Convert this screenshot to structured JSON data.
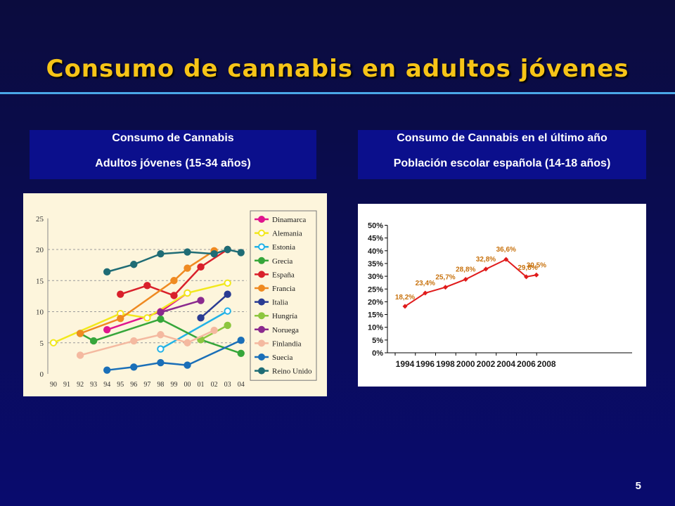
{
  "title": "Consumo de cannabis en adultos jóvenes",
  "page_number": "5",
  "left_panel": {
    "heading_line1": "Consumo de Cannabis",
    "heading_line2": "Adultos jóvenes (15-34 años)"
  },
  "right_panel": {
    "heading_line1": "Consumo de Cannabis en el último año",
    "heading_line2": "Población escolar española (14-18 años)"
  },
  "chart_data": [
    {
      "type": "line",
      "title": "",
      "xlabel": "",
      "ylabel": "",
      "categories": [
        "90",
        "91",
        "92",
        "93",
        "94",
        "95",
        "96",
        "97",
        "98",
        "99",
        "00",
        "01",
        "02",
        "03",
        "04"
      ],
      "ylim": [
        0,
        25
      ],
      "yticks": [
        "0",
        "5",
        "10",
        "15",
        "20",
        "25"
      ],
      "grid": "horizontal dashed",
      "legend": "right",
      "series": [
        {
          "name": "Dinamarca",
          "color": "#e0158e",
          "points": [
            [
              "94",
              7.1
            ],
            [
              "98",
              10.0
            ],
            [
              "00",
              13.0
            ]
          ]
        },
        {
          "name": "Alemania",
          "color": "#f2e81c",
          "marker_fill": "#ffffff",
          "points": [
            [
              "90",
              5.0
            ],
            [
              "95",
              9.7
            ],
            [
              "97",
              9.0
            ],
            [
              "00",
              13.0
            ],
            [
              "03",
              14.6
            ]
          ]
        },
        {
          "name": "Estonia",
          "color": "#22b2e6",
          "marker_fill": "#ffffff",
          "points": [
            [
              "98",
              4.0
            ],
            [
              "03",
              10.1
            ]
          ]
        },
        {
          "name": "Grecia",
          "color": "#36a63a",
          "points": [
            [
              "92",
              6.5
            ],
            [
              "93",
              5.3
            ],
            [
              "98",
              8.8
            ],
            [
              "01",
              5.5
            ],
            [
              "04",
              3.3
            ]
          ]
        },
        {
          "name": "España",
          "color": "#d9202b",
          "points": [
            [
              "95",
              12.8
            ],
            [
              "97",
              14.2
            ],
            [
              "99",
              12.6
            ],
            [
              "01",
              17.2
            ],
            [
              "03",
              20.0
            ]
          ]
        },
        {
          "name": "Francia",
          "color": "#ef8a21",
          "points": [
            [
              "92",
              6.5
            ],
            [
              "95",
              8.9
            ],
            [
              "99",
              15.0
            ],
            [
              "00",
              17.0
            ],
            [
              "02",
              19.8
            ]
          ]
        },
        {
          "name": "Italia",
          "color": "#2a3c93",
          "points": [
            [
              "01",
              9.0
            ],
            [
              "03",
              12.8
            ]
          ]
        },
        {
          "name": "Hungría",
          "color": "#8dc63f",
          "points": [
            [
              "01",
              5.5
            ],
            [
              "03",
              7.8
            ]
          ]
        },
        {
          "name": "Noruega",
          "color": "#8b2a8e",
          "points": [
            [
              "98",
              9.9
            ],
            [
              "01",
              11.8
            ]
          ]
        },
        {
          "name": "Finlandia",
          "color": "#f4b9a0",
          "points": [
            [
              "92",
              3.0
            ],
            [
              "96",
              5.3
            ],
            [
              "98",
              6.3
            ],
            [
              "00",
              5.0
            ],
            [
              "02",
              7.0
            ]
          ]
        },
        {
          "name": "Suecia",
          "color": "#1a6fb8",
          "points": [
            [
              "94",
              0.6
            ],
            [
              "96",
              1.1
            ],
            [
              "98",
              1.8
            ],
            [
              "00",
              1.4
            ],
            [
              "04",
              5.4
            ]
          ]
        },
        {
          "name": "Reino Unido",
          "color": "#1f6c75",
          "points": [
            [
              "94",
              16.4
            ],
            [
              "96",
              17.6
            ],
            [
              "98",
              19.3
            ],
            [
              "00",
              19.6
            ],
            [
              "02",
              19.3
            ],
            [
              "03",
              20.0
            ],
            [
              "04",
              19.5
            ]
          ]
        }
      ]
    },
    {
      "type": "line",
      "title": "",
      "xlabel": "",
      "ylabel": "",
      "categories": [
        "1994",
        "1996",
        "1998",
        "2000",
        "2002",
        "2004",
        "2006",
        "2008"
      ],
      "x": [
        1994,
        1996,
        1998,
        2000,
        2002,
        2004,
        2006,
        2007
      ],
      "ylim": [
        0,
        50
      ],
      "yticks": [
        "0%",
        "5%",
        "10%",
        "15%",
        "20%",
        "25%",
        "30%",
        "35%",
        "40%",
        "45%",
        "50%"
      ],
      "grid": "none",
      "color": "#e01b1b",
      "label_color": "#c8720e",
      "values": [
        18.2,
        23.4,
        25.7,
        28.8,
        32.8,
        36.6,
        29.8,
        30.5
      ],
      "labels": [
        "18,2%",
        "23,4%",
        "25,7%",
        "28,8%",
        "32,8%",
        "36,6%",
        "29,8%",
        "30,5%"
      ]
    }
  ]
}
